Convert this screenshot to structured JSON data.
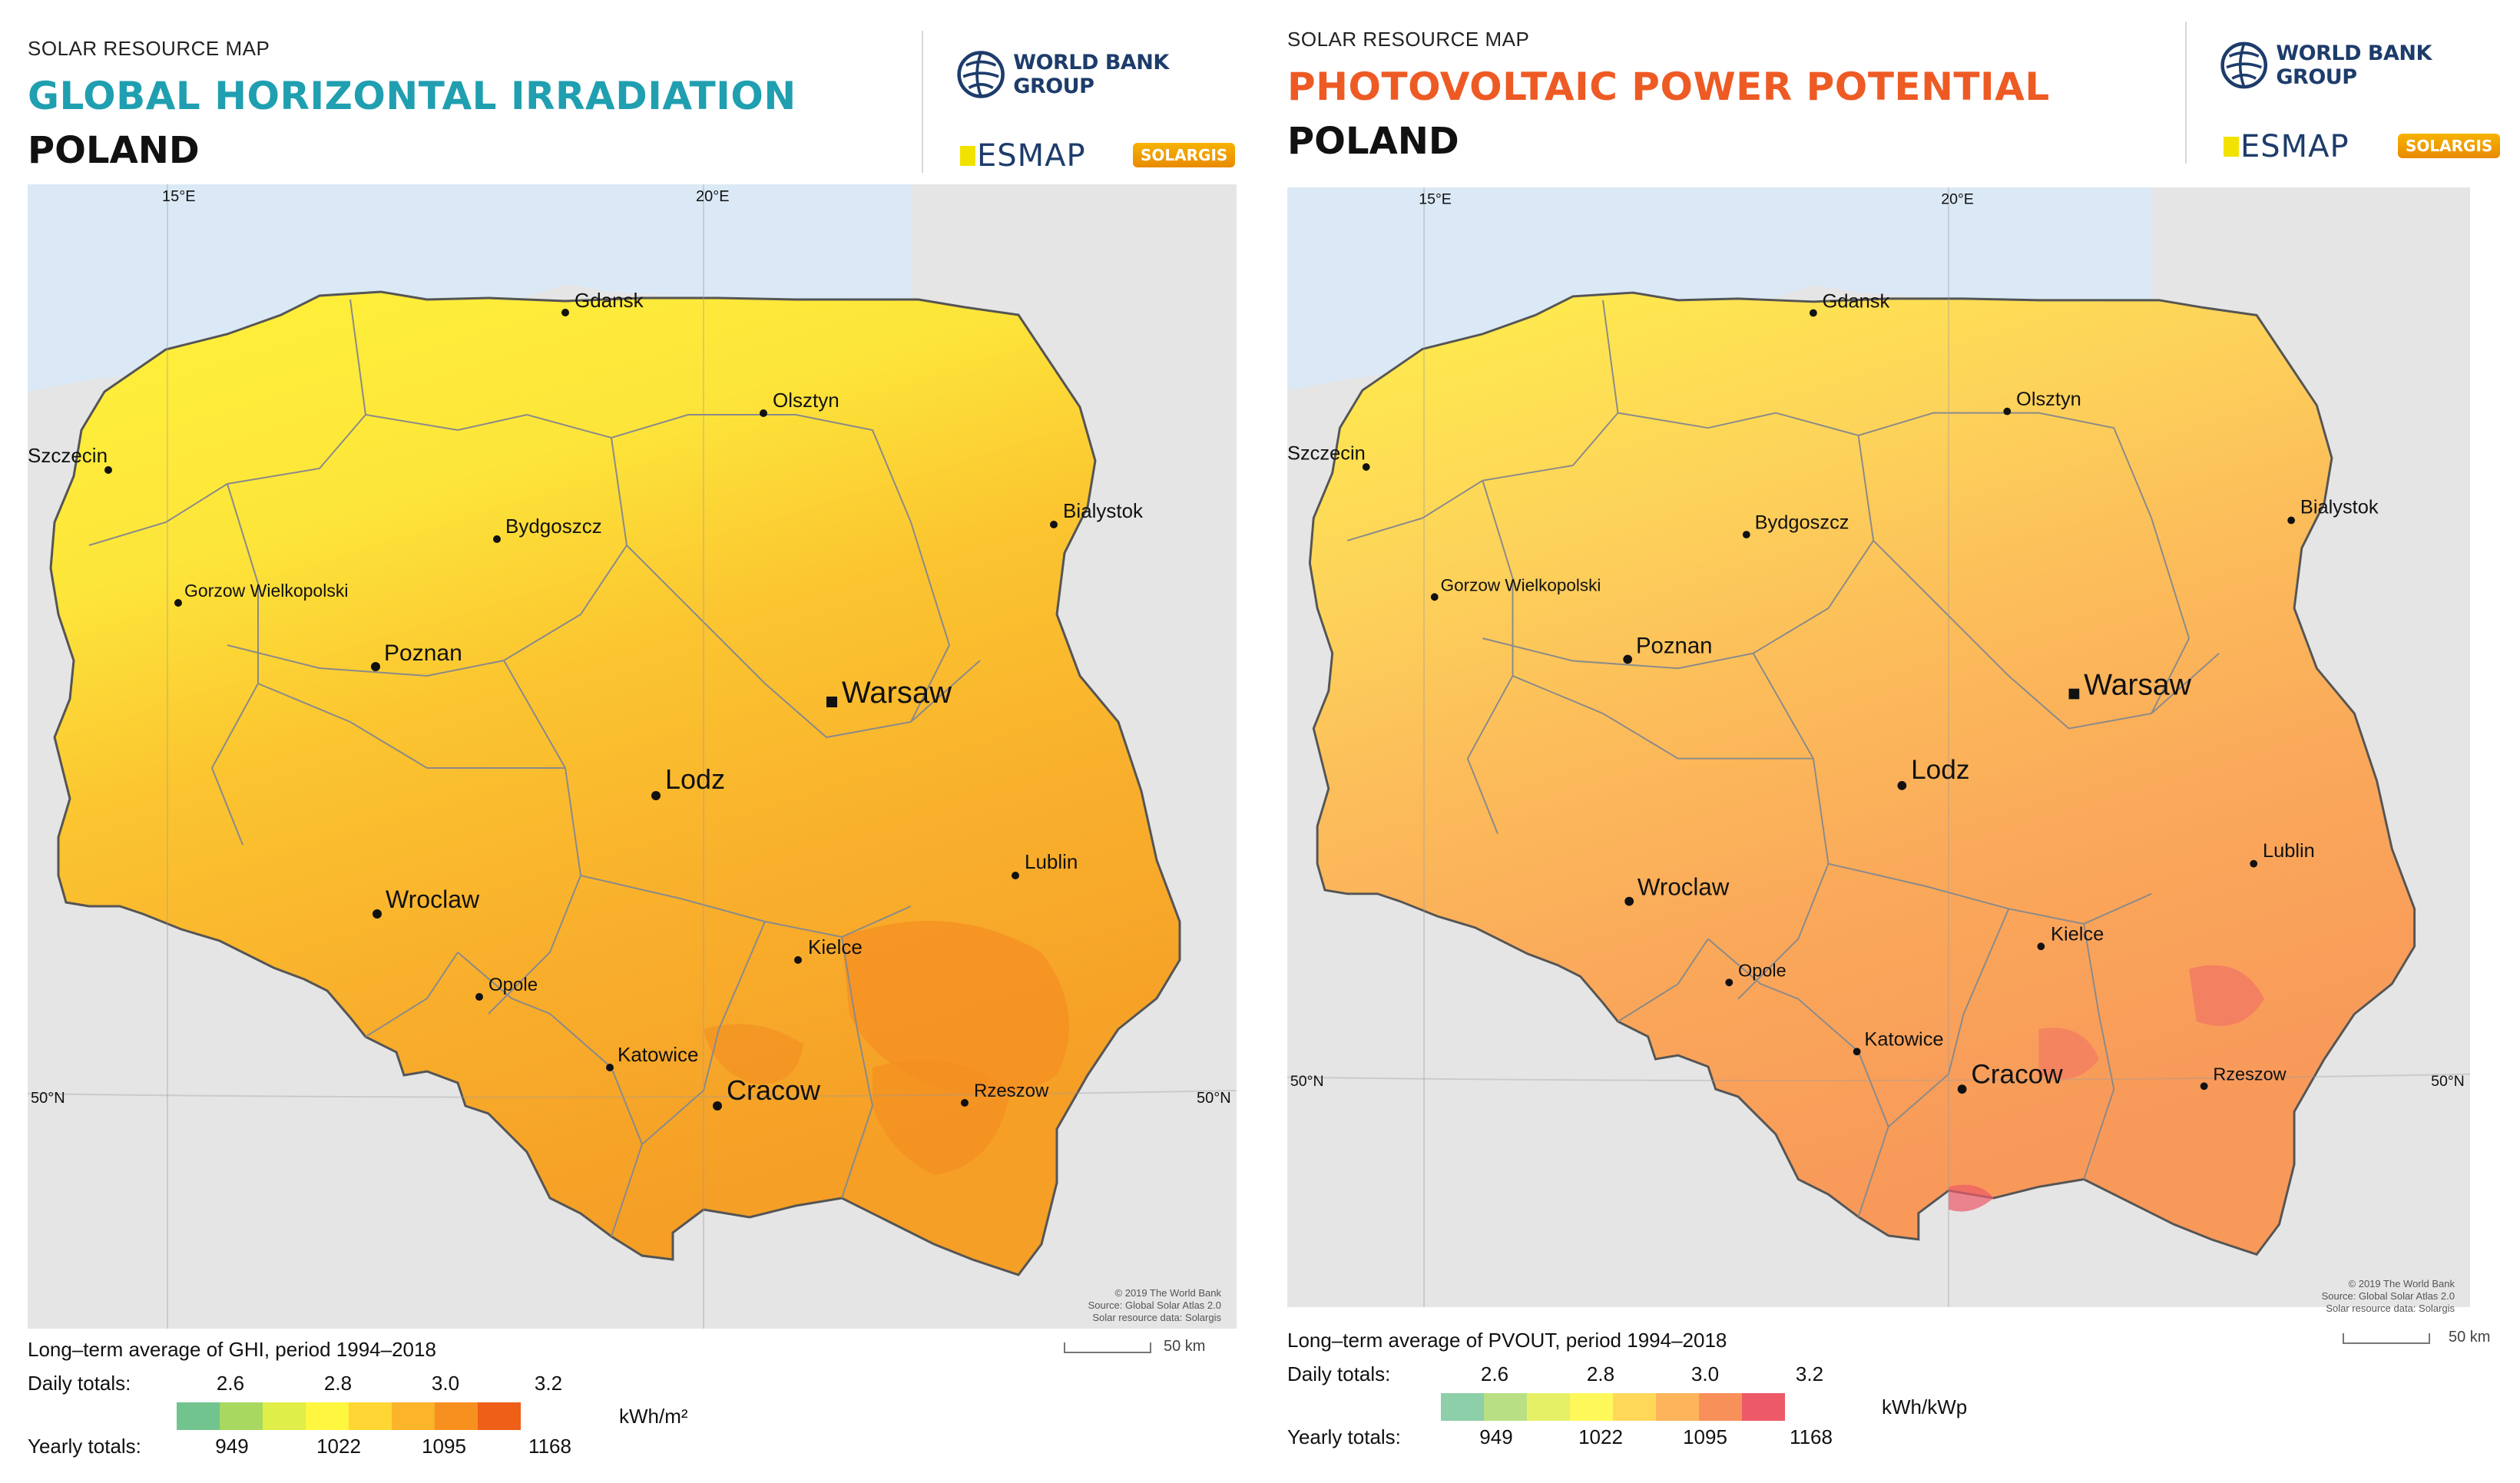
{
  "left": {
    "kicker": "SOLAR RESOURCE MAP",
    "title": "GLOBAL HORIZONTAL IRRADIATION",
    "title_color": "#1f9fb0",
    "country": "POLAND",
    "logo_wbg": "WORLD BANK GROUP",
    "logo_esmap": "ESMAP",
    "logo_solargis": "SOLARGIS",
    "graticule": {
      "lon15": "15°E",
      "lon20": "20°E",
      "lat50_left": "50°N",
      "lat50_right": "50°N"
    },
    "cities": {
      "gdansk": "Gdansk",
      "olsztyn": "Olsztyn",
      "szczecin": "Szczecin",
      "bydgoszcz": "Bydgoszcz",
      "bialystok": "Bialystok",
      "gorzow": "Gorzow Wielkopolski",
      "poznan": "Poznan",
      "warsaw": "Warsaw",
      "lodz": "Lodz",
      "lublin": "Lublin",
      "wroclaw": "Wroclaw",
      "kielce": "Kielce",
      "opole": "Opole",
      "katowice": "Katowice",
      "cracow": "Cracow",
      "rzeszow": "Rzeszow"
    },
    "copyright": [
      "© 2019 The World Bank",
      "Source: Global Solar Atlas 2.0",
      "Solar resource data: Solargis"
    ],
    "legend": {
      "title": "Long–term average of GHI, period 1994–2018",
      "daily_label": "Daily totals:",
      "yearly_label": "Yearly totals:",
      "daily_values": [
        "2.6",
        "2.8",
        "3.0",
        "3.2"
      ],
      "yearly_values": [
        "949",
        "1022",
        "1095",
        "1168"
      ],
      "unit": "kWh/m²",
      "scale": "50 km",
      "colors": [
        "#72c48f",
        "#a8d860",
        "#dfee48",
        "#fff640",
        "#ffd633",
        "#fcb42a",
        "#f7901e",
        "#ee5f18"
      ]
    }
  },
  "right": {
    "kicker": "SOLAR RESOURCE MAP",
    "title": "PHOTOVOLTAIC POWER POTENTIAL",
    "title_color": "#ee5a24",
    "country": "POLAND",
    "logo_wbg": "WORLD BANK GROUP",
    "logo_esmap": "ESMAP",
    "logo_solargis": "SOLARGIS",
    "graticule": {
      "lon15": "15°E",
      "lon20": "20°E",
      "lat50_left": "50°N",
      "lat50_right": "50°N"
    },
    "cities": {
      "gdansk": "Gdansk",
      "olsztyn": "Olsztyn",
      "szczecin": "Szczecin",
      "bydgoszcz": "Bydgoszcz",
      "bialystok": "Bialystok",
      "gorzow": "Gorzow Wielkopolski",
      "poznan": "Poznan",
      "warsaw": "Warsaw",
      "lodz": "Lodz",
      "lublin": "Lublin",
      "wroclaw": "Wroclaw",
      "kielce": "Kielce",
      "opole": "Opole",
      "katowice": "Katowice",
      "cracow": "Cracow",
      "rzeszow": "Rzeszow"
    },
    "copyright": [
      "© 2019 The World Bank",
      "Source: Global Solar Atlas 2.0",
      "Solar resource data: Solargis"
    ],
    "legend": {
      "title": "Long–term average of PVOUT, period 1994–2018",
      "daily_label": "Daily totals:",
      "yearly_label": "Yearly totals:",
      "daily_values": [
        "2.6",
        "2.8",
        "3.0",
        "3.2"
      ],
      "yearly_values": [
        "949",
        "1022",
        "1095",
        "1168"
      ],
      "unit": "kWh/kWp",
      "scale": "50 km",
      "colors": [
        "#8ccfa8",
        "#b9df84",
        "#e6f067",
        "#fff85a",
        "#ffd85a",
        "#fdb45a",
        "#f8905a",
        "#ec5a68"
      ]
    }
  }
}
